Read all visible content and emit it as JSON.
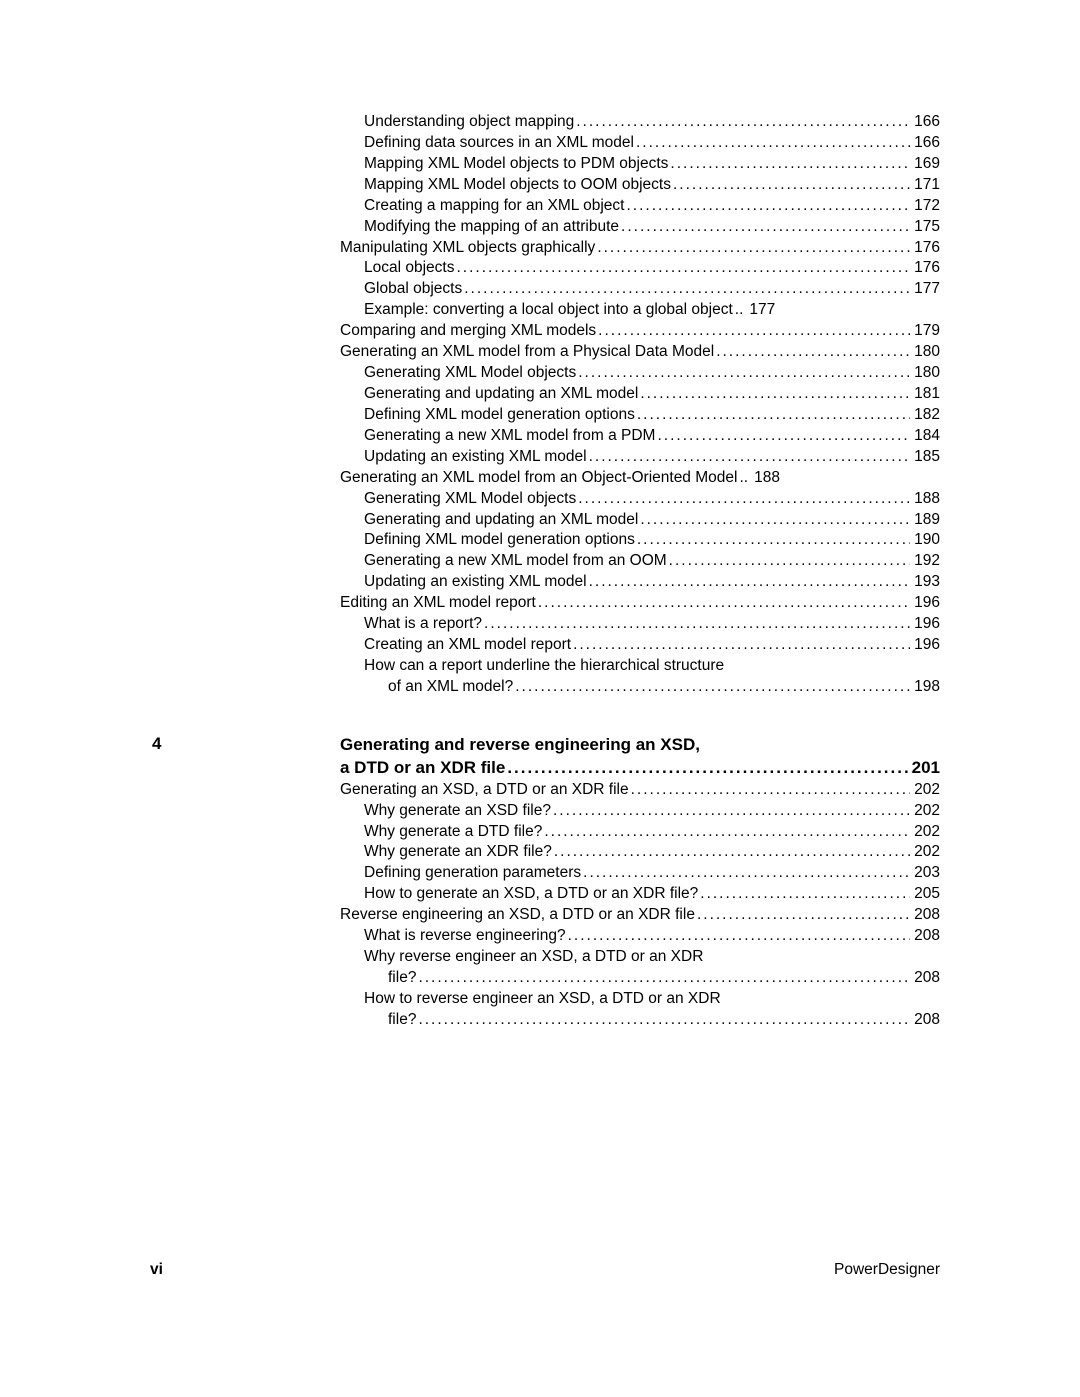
{
  "toc": {
    "block1": [
      {
        "level": 2,
        "title": "Understanding object mapping",
        "page": "166"
      },
      {
        "level": 2,
        "title": "Defining data sources in an XML model",
        "page": "166"
      },
      {
        "level": 2,
        "title": "Mapping XML Model objects to PDM objects",
        "page": "169"
      },
      {
        "level": 2,
        "title": "Mapping XML Model objects to OOM objects",
        "page": "171"
      },
      {
        "level": 2,
        "title": "Creating a mapping for an XML object",
        "page": "172"
      },
      {
        "level": 2,
        "title": "Modifying the mapping of an attribute",
        "page": "175"
      },
      {
        "level": 1,
        "title": "Manipulating XML objects graphically",
        "page": "176"
      },
      {
        "level": 2,
        "title": "Local objects",
        "page": "176"
      },
      {
        "level": 2,
        "title": "Global objects",
        "page": "177"
      },
      {
        "level": 2,
        "title": "Example: converting a local object into a global object",
        "page": "177",
        "tight": true
      },
      {
        "level": 1,
        "title": "Comparing and merging XML models",
        "page": "179"
      },
      {
        "level": 1,
        "title": "Generating an XML model from a Physical Data Model",
        "page": "180"
      },
      {
        "level": 2,
        "title": "Generating XML Model objects",
        "page": "180"
      },
      {
        "level": 2,
        "title": "Generating and updating an XML model",
        "page": "181"
      },
      {
        "level": 2,
        "title": "Defining XML model generation options",
        "page": "182"
      },
      {
        "level": 2,
        "title": "Generating a new XML model from a PDM",
        "page": "184"
      },
      {
        "level": 2,
        "title": "Updating an existing XML model",
        "page": "185"
      },
      {
        "level": 1,
        "title": "Generating an XML model from an Object-Oriented Model",
        "page": "188",
        "tight": true
      },
      {
        "level": 2,
        "title": "Generating XML Model objects",
        "page": "188"
      },
      {
        "level": 2,
        "title": "Generating and updating an XML model",
        "page": "189"
      },
      {
        "level": 2,
        "title": "Defining XML model generation options",
        "page": "190"
      },
      {
        "level": 2,
        "title": "Generating a new XML model from an OOM",
        "page": "192"
      },
      {
        "level": 2,
        "title": "Updating an existing XML model",
        "page": "193"
      },
      {
        "level": 1,
        "title": "Editing an XML model report",
        "page": "196"
      },
      {
        "level": 2,
        "title": "What is a report?",
        "page": "196"
      },
      {
        "level": 2,
        "title": "Creating an XML model report",
        "page": "196"
      },
      {
        "level": 2,
        "title": "How can a report underline the hierarchical structure",
        "wrap": true
      },
      {
        "level": 3,
        "title": "of an XML model?",
        "page": "198"
      }
    ],
    "chapter": {
      "num": "4",
      "title_line1": "Generating and reverse engineering an XSD,",
      "title_line2": "a DTD or an XDR file",
      "page": "201"
    },
    "block2": [
      {
        "level": 1,
        "title": "Generating an XSD, a DTD or an XDR file",
        "page": "202"
      },
      {
        "level": 2,
        "title": "Why generate an XSD file?",
        "page": "202"
      },
      {
        "level": 2,
        "title": "Why generate a DTD file?",
        "page": "202"
      },
      {
        "level": 2,
        "title": "Why generate an XDR file?",
        "page": "202"
      },
      {
        "level": 2,
        "title": "Defining generation parameters",
        "page": "203"
      },
      {
        "level": 2,
        "title": "How to generate an XSD, a DTD or an XDR file?",
        "page": "205"
      },
      {
        "level": 1,
        "title": "Reverse engineering an XSD, a DTD or an XDR file",
        "page": "208"
      },
      {
        "level": 2,
        "title": "What is reverse engineering?",
        "page": "208"
      },
      {
        "level": 2,
        "title": "Why reverse engineer an XSD, a DTD or an XDR",
        "wrap": true
      },
      {
        "level": 3,
        "title": "file?",
        "page": "208"
      },
      {
        "level": 2,
        "title": "How to reverse engineer an XSD, a DTD or an XDR",
        "wrap": true
      },
      {
        "level": 3,
        "title": "file?",
        "page": "208"
      }
    ]
  },
  "footer": {
    "pagenum": "vi",
    "product": "PowerDesigner"
  },
  "dots": "......................................................................................................................."
}
